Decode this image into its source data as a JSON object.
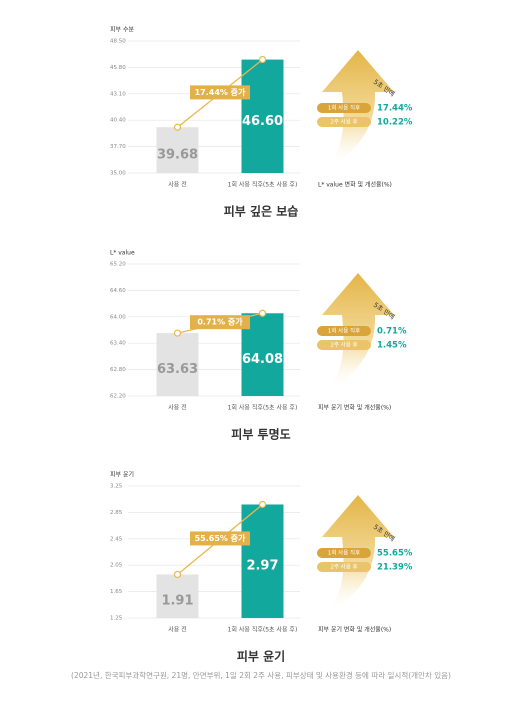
{
  "chart_data": [
    {
      "type": "bar",
      "y_label": "피부 수분",
      "categories": [
        "사용 전",
        "1회 사용 직후(5초 사용 후)"
      ],
      "values": [
        39.68,
        46.6
      ],
      "value_labels": [
        "39.68",
        "46.60"
      ],
      "colors": [
        "#e3e3e3",
        "#13a89e"
      ],
      "ylim": [
        35,
        48.5
      ],
      "yticks": [
        {
          "value": 35,
          "label": "35.00"
        },
        {
          "value": 37.7,
          "label": "37.70"
        },
        {
          "value": 40.4,
          "label": "40.40"
        },
        {
          "value": 43.1,
          "label": "43.10"
        },
        {
          "value": 45.8,
          "label": "45.80"
        },
        {
          "value": 48.5,
          "label": "48.50"
        }
      ],
      "annotation": "17.44% 증가",
      "badge": "5초 만에",
      "legend": [
        {
          "label": "1회 사용 직후",
          "value": "17.44%"
        },
        {
          "label": "2주 사용 후",
          "value": "10.22%"
        }
      ],
      "caption": "L* value 변화 및 개선율(%)",
      "title": "피부 깊은 보습"
    },
    {
      "type": "bar",
      "y_label": "L* value",
      "categories": [
        "사용 전",
        "1회 사용 직후(5초 사용 후)"
      ],
      "values": [
        63.63,
        64.08
      ],
      "value_labels": [
        "63.63",
        "64.08"
      ],
      "colors": [
        "#e3e3e3",
        "#13a89e"
      ],
      "ylim": [
        62.2,
        65.2
      ],
      "yticks": [
        {
          "value": 62.2,
          "label": "62.20"
        },
        {
          "value": 62.8,
          "label": "62.80"
        },
        {
          "value": 63.4,
          "label": "63.40"
        },
        {
          "value": 64,
          "label": "64.00"
        },
        {
          "value": 64.6,
          "label": "64.60"
        },
        {
          "value": 65.2,
          "label": "65.20"
        }
      ],
      "annotation": "0.71% 증가",
      "badge": "5초 만에",
      "legend": [
        {
          "label": "1회 사용 직후",
          "value": "0.71%"
        },
        {
          "label": "2주 사용 후",
          "value": "1.45%"
        }
      ],
      "caption": "피부 윤기 변화 및 개선율(%)",
      "title": "피부 투명도"
    },
    {
      "type": "bar",
      "y_label": "피부 윤기",
      "categories": [
        "사용 전",
        "1회 사용 직후(5초 사용 후)"
      ],
      "values": [
        1.91,
        2.97
      ],
      "value_labels": [
        "1.91",
        "2.97"
      ],
      "colors": [
        "#e3e3e3",
        "#13a89e"
      ],
      "ylim": [
        1.25,
        3.25
      ],
      "yticks": [
        1.25,
        1.65,
        2.05,
        2.45,
        2.85,
        3.25
      ],
      "annotation": "55.65% 증가",
      "badge": "5초 만에",
      "legend": [
        {
          "label": "1회 사용 직후",
          "value": "55.65%"
        },
        {
          "label": "2주 사용 후",
          "value": "21.39%"
        }
      ],
      "caption": "피부 윤기 변화 및 개선율(%)",
      "title": "피부 윤기"
    }
  ],
  "footnote": "(2021년, 한국피부과학연구원, 21명, 안면부위, 1일 2회 2주 사용, 피부상태 및 사용환경 등에 따라 일시적(개인차 있음)"
}
